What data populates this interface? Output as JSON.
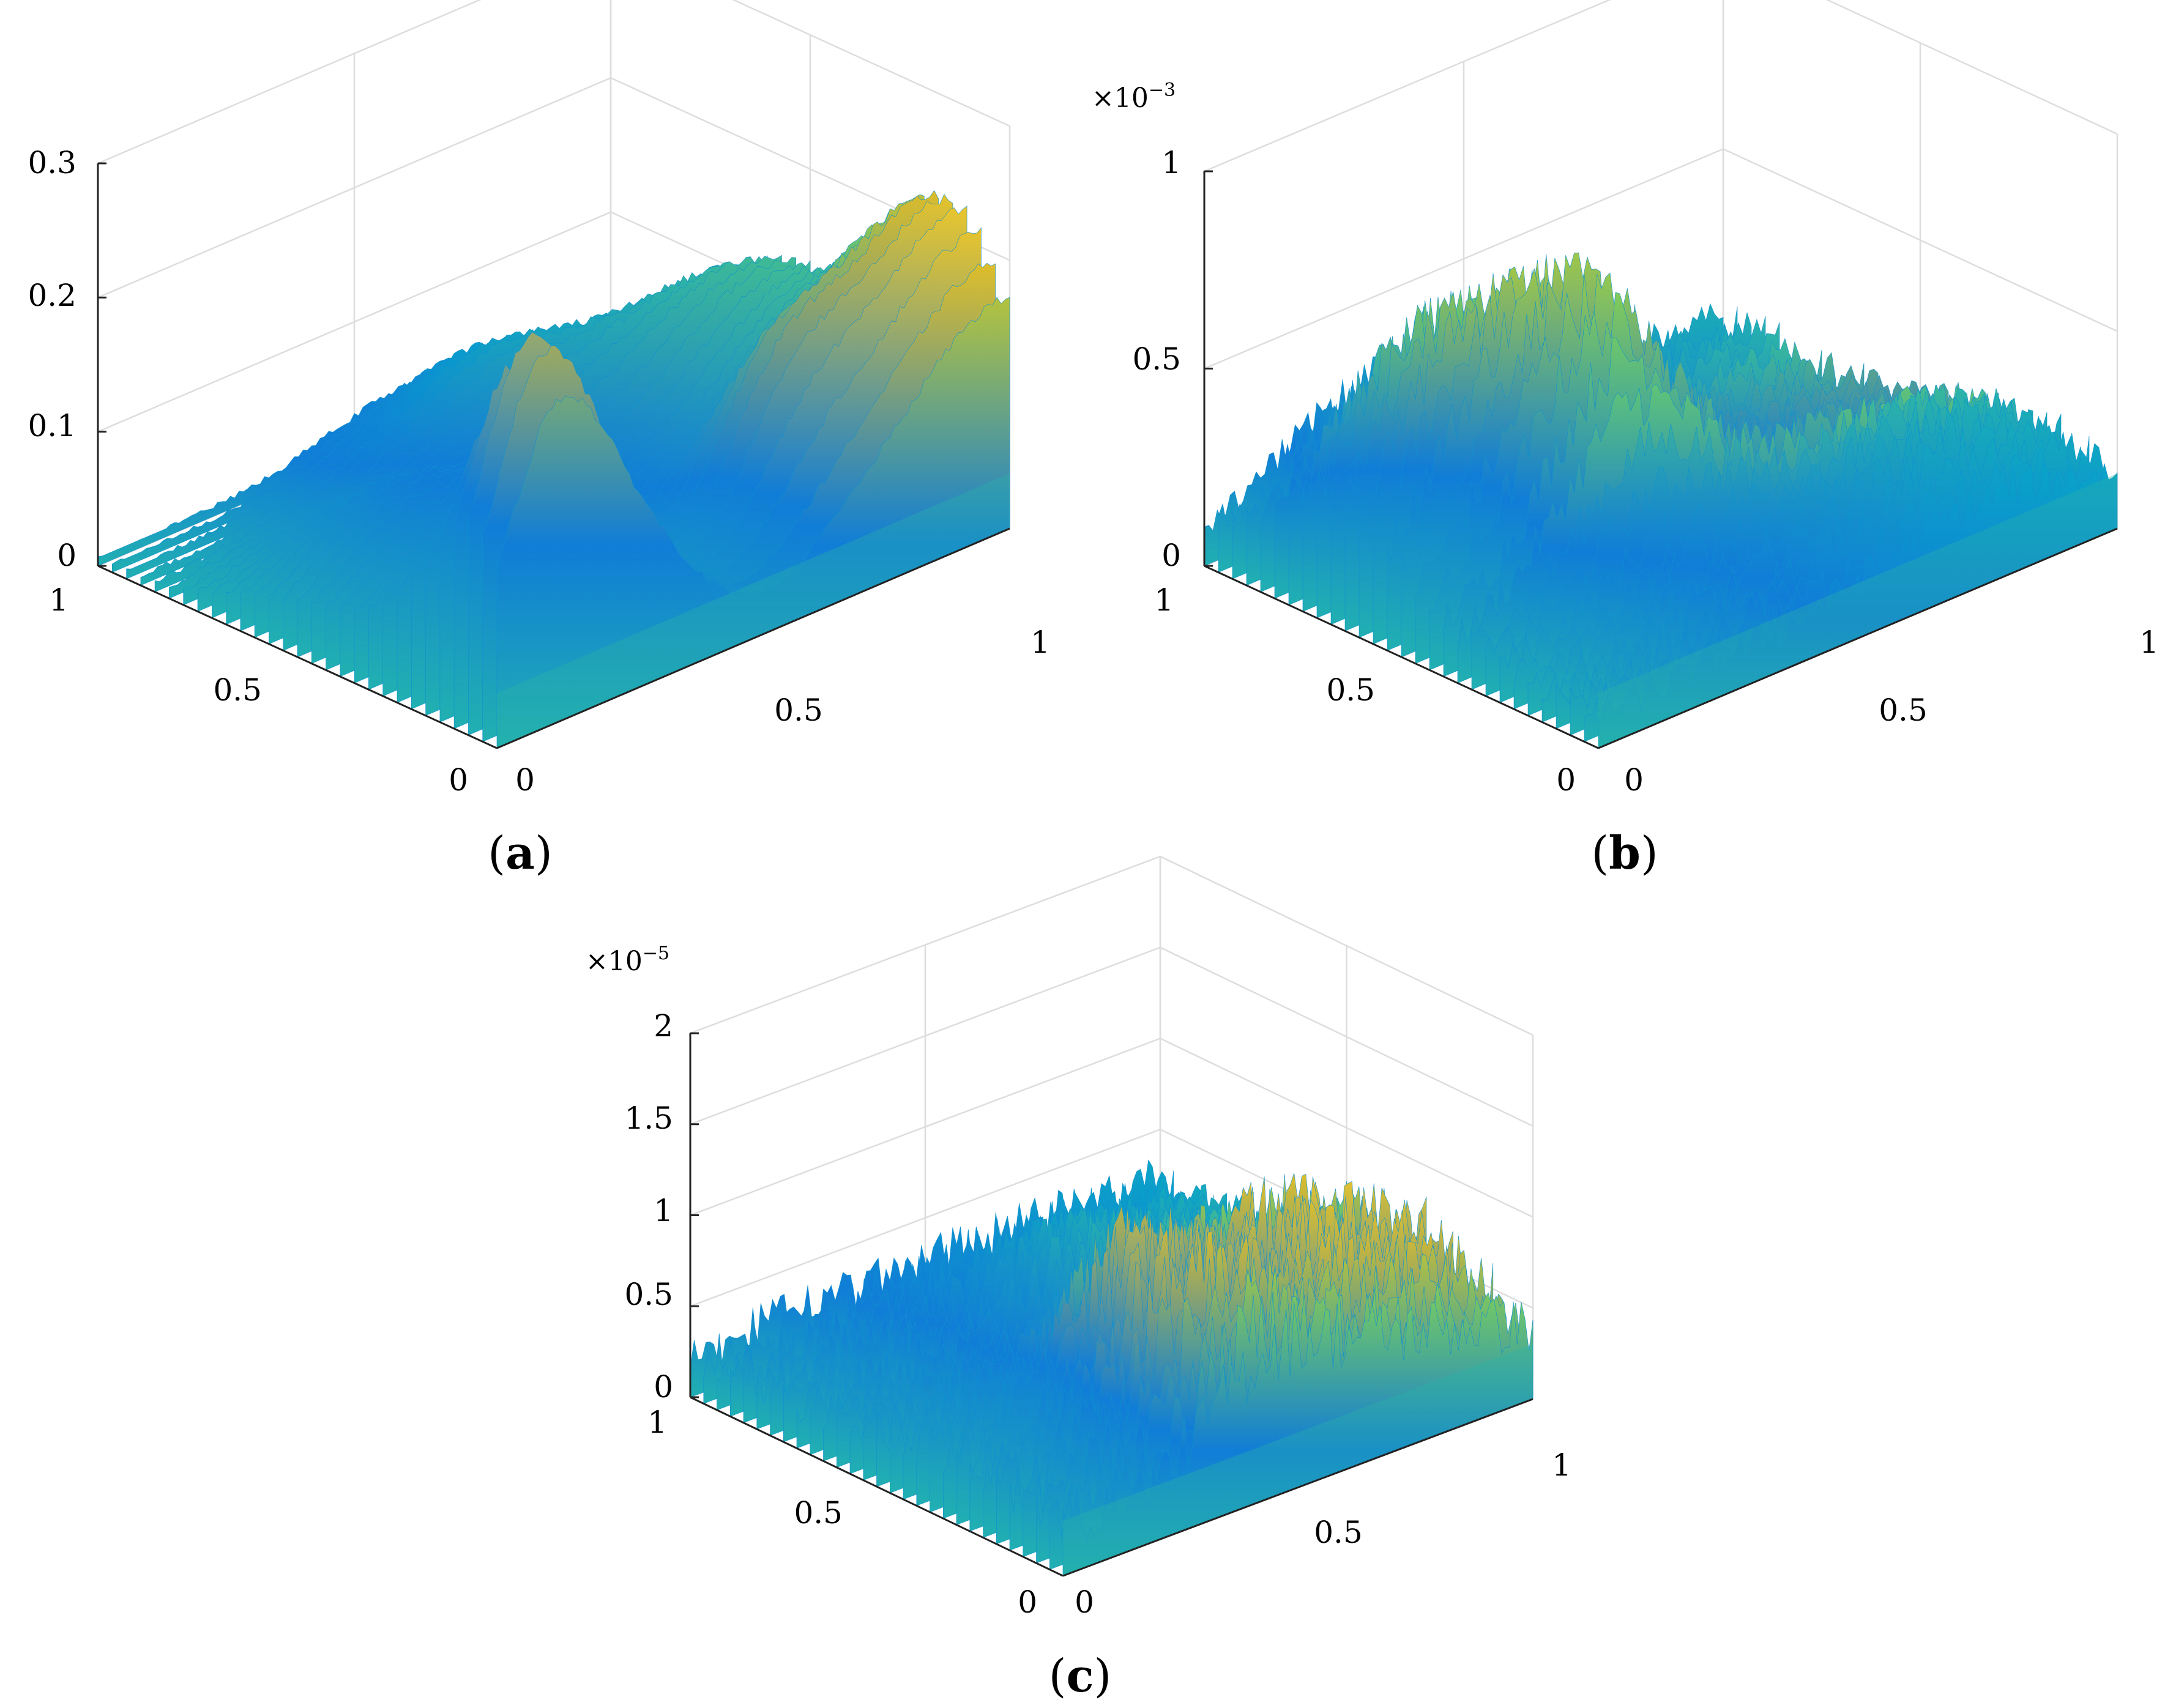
{
  "chart_data": [
    {
      "type": "surface",
      "panel_label": "a",
      "title": "",
      "colormap": "parula",
      "x_ticks": [
        "0",
        "0.5",
        "1"
      ],
      "y_ticks": [
        "0",
        "0.5",
        "1"
      ],
      "z_ticks": [
        "0",
        "0.1",
        "0.2",
        "0.3"
      ],
      "z_tick_values": [
        0,
        0.1,
        0.2,
        0.3
      ],
      "z_scale_label": "",
      "xlim": [
        0,
        1
      ],
      "ylim": [
        0,
        1
      ],
      "zlim": [
        0,
        0.3
      ],
      "z_max_observed": 0.28,
      "roughness": "smooth",
      "grid": true
    },
    {
      "type": "surface",
      "panel_label": "b",
      "title": "",
      "colormap": "parula",
      "x_ticks": [
        "0",
        "0.5",
        "1"
      ],
      "y_ticks": [
        "0",
        "0.5",
        "1"
      ],
      "z_ticks": [
        "0",
        "0.5",
        "1"
      ],
      "z_tick_values": [
        0,
        0.5,
        1
      ],
      "z_scale_base": "×10",
      "z_scale_exp": "−3",
      "xlim": [
        0,
        1
      ],
      "ylim": [
        0,
        1
      ],
      "zlim": [
        0,
        1
      ],
      "z_max_observed": 0.9,
      "roughness": "medium",
      "grid": true
    },
    {
      "type": "surface",
      "panel_label": "c",
      "title": "",
      "colormap": "parula",
      "x_ticks": [
        "0",
        "0.5",
        "1"
      ],
      "y_ticks": [
        "0",
        "0.5",
        "1"
      ],
      "z_ticks": [
        "0",
        "0.5",
        "1",
        "1.5",
        "2"
      ],
      "z_tick_values": [
        0,
        0.5,
        1,
        1.5,
        2
      ],
      "z_scale_base": "×10",
      "z_scale_exp": "−5",
      "xlim": [
        0,
        1
      ],
      "ylim": [
        0,
        1
      ],
      "zlim": [
        0,
        2
      ],
      "z_max_observed": 1.55,
      "roughness": "rough",
      "grid": true
    }
  ],
  "captions": {
    "a": {
      "open": "(",
      "letter": "a",
      "close": ")"
    },
    "b": {
      "open": "(",
      "letter": "b",
      "close": ")"
    },
    "c": {
      "open": "(",
      "letter": "c",
      "close": ")"
    }
  }
}
